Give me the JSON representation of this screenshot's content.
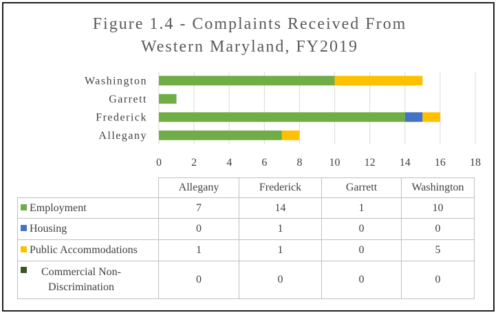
{
  "chart_data": {
    "type": "bar",
    "orientation": "horizontal",
    "stacked": true,
    "title": [
      "Figure 1.4 - Complaints Received From",
      "Western Maryland, FY2019"
    ],
    "categories": [
      "Allegany",
      "Frederick",
      "Garrett",
      "Washington"
    ],
    "series": [
      {
        "name": "Employment",
        "color": "#70ad47",
        "values": [
          7,
          14,
          1,
          10
        ]
      },
      {
        "name": "Housing",
        "color": "#4472c4",
        "values": [
          0,
          1,
          0,
          0
        ]
      },
      {
        "name": "Public Accommodations",
        "color": "#ffc000",
        "values": [
          1,
          1,
          0,
          5
        ]
      },
      {
        "name": "Commercial Non-Discrimination",
        "color": "#375623",
        "values": [
          0,
          0,
          0,
          0
        ]
      }
    ],
    "xlim": [
      0,
      18
    ],
    "xticks": [
      0,
      2,
      4,
      6,
      8,
      10,
      12,
      14,
      16,
      18
    ],
    "grid": true,
    "legend": "data-table"
  }
}
